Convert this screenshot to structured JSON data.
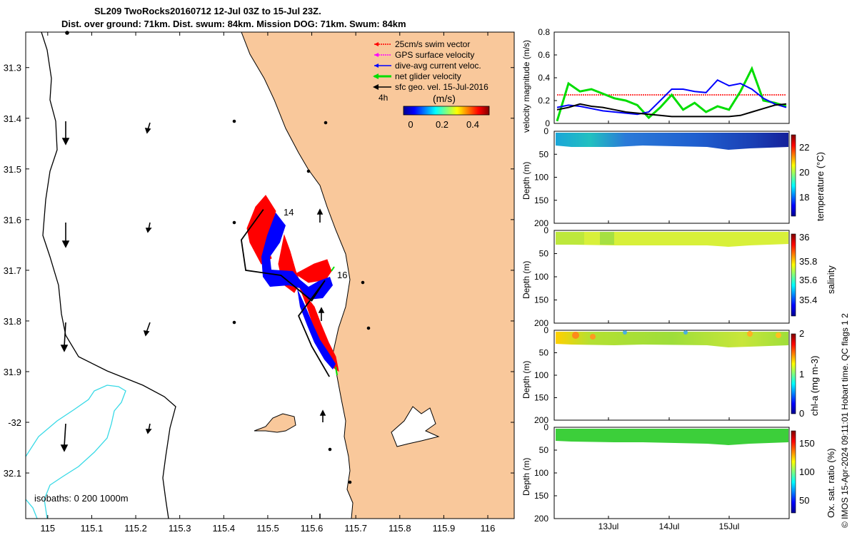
{
  "title_line1": "SL209 TwoRocks20160712 12-Jul 03Z to 15-Jul 23Z.",
  "title_line2": "Dist. over ground: 71km. Dist. swum: 84km. Mission DOG: 71km. Swum: 84km",
  "stamp": "© IMOS 15-Apr-2024 09:11:01 Hobart time. QC flags 1  2",
  "colors": {
    "land": "#f9c89b",
    "isobath_shallow": "#000000",
    "isobath_deep": "#36d9e6",
    "swim": "#ff0000",
    "gps": "#ff00ff",
    "dive_avg": "#0000ff",
    "net": "#00dd00",
    "geo": "#000000"
  },
  "chart_data": [
    {
      "type": "map",
      "xlim": [
        114.95,
        116.06
      ],
      "ylim": [
        -32.19,
        -31.23
      ],
      "lon_ticks": [
        "115",
        "115.1",
        "115.2",
        "115.3",
        "115.4",
        "115.5",
        "115.6",
        "115.7",
        "115.8",
        "115.9",
        "116"
      ],
      "lat_ticks": [
        "31.3",
        "31.4",
        "31.5",
        "31.6",
        "31.7",
        "31.8",
        "31.9",
        "-32",
        "32.1"
      ],
      "legend": [
        {
          "label": "25cm/s swim vector",
          "color": "#ff0000"
        },
        {
          "label": "GPS surface velocity",
          "color": "#ff00ff"
        },
        {
          "label": "dive-avg current veloc.",
          "color": "#0000ff"
        },
        {
          "label": "net glider velocity",
          "color": "#00dd00"
        },
        {
          "label": "sfc geo. vel. 15-Jul-2016",
          "color": "#000000"
        }
      ],
      "scale_label": "4h",
      "colorbar": {
        "title": "(m/s)",
        "ticks": [
          "0",
          "0.2",
          "0.4"
        ],
        "range": [
          0,
          0.5
        ]
      },
      "isobaths_label": "isobaths: 0   200  1000m",
      "day_labels": [
        "14",
        "16"
      ],
      "track": [
        {
          "lon": 115.49,
          "lat": -31.58
        },
        {
          "lon": 115.44,
          "lat": -31.64
        },
        {
          "lon": 115.45,
          "lat": -31.7
        },
        {
          "lon": 115.53,
          "lat": -31.71
        },
        {
          "lon": 115.6,
          "lat": -31.76
        },
        {
          "lon": 115.63,
          "lat": -31.72
        },
        {
          "lon": 115.57,
          "lat": -31.79
        },
        {
          "lon": 115.6,
          "lat": -31.85
        },
        {
          "lon": 115.64,
          "lat": -31.91
        }
      ]
    },
    {
      "type": "line",
      "ylabel": "velocity magnitude (m/s)",
      "ylim": [
        0,
        0.8
      ],
      "yticks": [
        "0",
        "0.2",
        "0.4",
        "0.6",
        "0.8"
      ],
      "x": [
        0,
        0.05,
        0.1,
        0.15,
        0.2,
        0.25,
        0.3,
        0.35,
        0.4,
        0.45,
        0.5,
        0.55,
        0.6,
        0.65,
        0.7,
        0.75,
        0.8,
        0.85,
        0.9,
        0.95,
        1.0
      ],
      "series": [
        {
          "name": "swim",
          "color": "#ff0000",
          "values": [
            0.25,
            0.25,
            0.25,
            0.25,
            0.25,
            0.25,
            0.25,
            0.25,
            0.25,
            0.25,
            0.25,
            0.25,
            0.25,
            0.25,
            0.25,
            0.25,
            0.25,
            0.25,
            0.25,
            0.25,
            0.25
          ]
        },
        {
          "name": "net",
          "color": "#00dd00",
          "values": [
            0.02,
            0.35,
            0.28,
            0.3,
            0.26,
            0.22,
            0.2,
            0.16,
            0.05,
            0.14,
            0.25,
            0.12,
            0.18,
            0.1,
            0.15,
            0.12,
            0.28,
            0.48,
            0.2,
            0.18,
            0.15
          ]
        },
        {
          "name": "dive-avg",
          "color": "#0000ff",
          "values": [
            0.14,
            0.16,
            0.15,
            0.13,
            0.11,
            0.1,
            0.09,
            0.08,
            0.1,
            0.2,
            0.3,
            0.3,
            0.28,
            0.27,
            0.38,
            0.33,
            0.35,
            0.3,
            0.22,
            0.17,
            0.14
          ]
        },
        {
          "name": "geo",
          "color": "#000000",
          "values": [
            0.12,
            0.14,
            0.17,
            0.15,
            0.14,
            0.12,
            0.1,
            0.09,
            0.08,
            0.07,
            0.06,
            0.06,
            0.06,
            0.06,
            0.06,
            0.06,
            0.07,
            0.1,
            0.13,
            0.16,
            0.17
          ]
        }
      ]
    },
    {
      "type": "heatmap",
      "ylabel": "Depth (m)",
      "yticks": [
        "0",
        "50",
        "100",
        "150",
        "200"
      ],
      "cbar_label": "temperature (°C)",
      "cbar_ticks": [
        "22",
        "20",
        "18"
      ]
    },
    {
      "type": "heatmap",
      "ylabel": "Depth (m)",
      "yticks": [
        "0",
        "50",
        "100",
        "150",
        "200"
      ],
      "cbar_label": "salinity",
      "cbar_ticks": [
        "36",
        "35.8",
        "35.6",
        "35.4"
      ]
    },
    {
      "type": "heatmap",
      "ylabel": "Depth (m)",
      "yticks": [
        "0",
        "50",
        "100",
        "150",
        "200"
      ],
      "cbar_label": "chl-a (mg m-3)",
      "cbar_ticks": [
        "2",
        "1",
        "0"
      ]
    },
    {
      "type": "heatmap",
      "ylabel": "Depth (m)",
      "yticks": [
        "0",
        "50",
        "100",
        "150",
        "200"
      ],
      "cbar_label": "Ox. sat. ratio (%)",
      "cbar_ticks": [
        "150",
        "100",
        "50"
      ],
      "xticks": [
        "13Jul",
        "14Jul",
        "15Jul"
      ]
    }
  ]
}
